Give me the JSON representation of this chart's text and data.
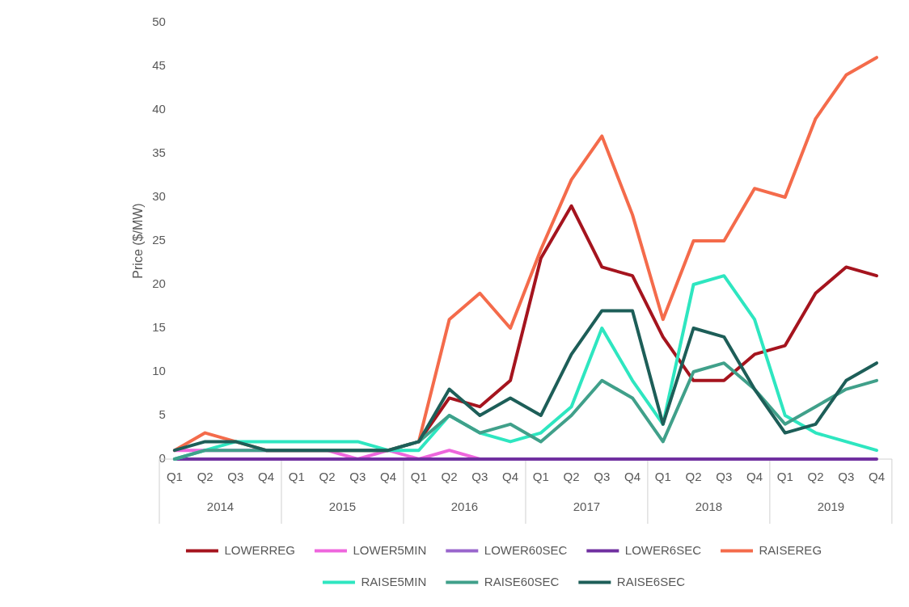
{
  "chart_data": {
    "type": "line",
    "ylabel": "Price ($/MW)",
    "categories": [
      "Q1",
      "Q2",
      "Q3",
      "Q4",
      "Q1",
      "Q2",
      "Q3",
      "Q4",
      "Q1",
      "Q2",
      "Q3",
      "Q4",
      "Q1",
      "Q2",
      "Q3",
      "Q4",
      "Q1",
      "Q2",
      "Q3",
      "Q4",
      "Q1",
      "Q2",
      "Q3",
      "Q4"
    ],
    "annotations": [
      "2014",
      "2015",
      "2016",
      "2017",
      "2018",
      "2019"
    ],
    "ylim": [
      0,
      50
    ],
    "yticks": [
      0,
      5,
      10,
      15,
      20,
      25,
      30,
      35,
      40,
      45,
      50
    ],
    "grid": false,
    "legend": "bottom",
    "marker": "none",
    "line_style": "solid",
    "series": [
      {
        "name": "LOWERREG",
        "color": "#a5141e",
        "values": [
          null,
          null,
          null,
          null,
          null,
          null,
          null,
          null,
          2,
          7,
          6,
          9,
          23,
          29,
          22,
          21,
          14,
          9,
          9,
          12,
          13,
          19,
          22,
          21
        ]
      },
      {
        "name": "LOWER5MIN",
        "color": "#ee66dd",
        "values": [
          1,
          1,
          1,
          1,
          1,
          1,
          0,
          1,
          0,
          1,
          0,
          null,
          null,
          null,
          null,
          null,
          null,
          null,
          null,
          null,
          null,
          null,
          null,
          null
        ]
      },
      {
        "name": "LOWER60SEC",
        "color": "#9966cc",
        "values": [
          null,
          null,
          null,
          null,
          null,
          null,
          null,
          null,
          null,
          null,
          null,
          null,
          null,
          null,
          null,
          null,
          null,
          null,
          null,
          null,
          null,
          null,
          null,
          null
        ]
      },
      {
        "name": "LOWER6SEC",
        "color": "#7030a0",
        "values": [
          0,
          0,
          0,
          0,
          0,
          0,
          0,
          0,
          0,
          0,
          0,
          0,
          0,
          0,
          0,
          0,
          0,
          0,
          0,
          0,
          0,
          0,
          0,
          0
        ]
      },
      {
        "name": "RAISEREG",
        "color": "#f46b4b",
        "values": [
          1,
          3,
          2,
          1,
          1,
          1,
          1,
          1,
          2,
          16,
          19,
          15,
          24,
          32,
          37,
          28,
          16,
          25,
          25,
          31,
          30,
          39,
          44,
          46
        ]
      },
      {
        "name": "RAISE5MIN",
        "color": "#2ee6c0",
        "values": [
          0,
          1,
          2,
          2,
          2,
          2,
          2,
          1,
          1,
          5,
          3,
          2,
          3,
          6,
          15,
          9,
          4,
          20,
          21,
          16,
          5,
          3,
          2,
          1
        ]
      },
      {
        "name": "RAISE60SEC",
        "color": "#40a08a",
        "values": [
          0,
          1,
          1,
          1,
          1,
          1,
          1,
          1,
          2,
          5,
          3,
          4,
          2,
          5,
          9,
          7,
          2,
          10,
          11,
          8,
          4,
          6,
          8,
          9
        ]
      },
      {
        "name": "RAISE6SEC",
        "color": "#1d5e58",
        "values": [
          1,
          2,
          2,
          1,
          1,
          1,
          1,
          1,
          2,
          8,
          5,
          7,
          5,
          12,
          17,
          17,
          4,
          15,
          14,
          8,
          3,
          4,
          9,
          11
        ]
      }
    ]
  }
}
